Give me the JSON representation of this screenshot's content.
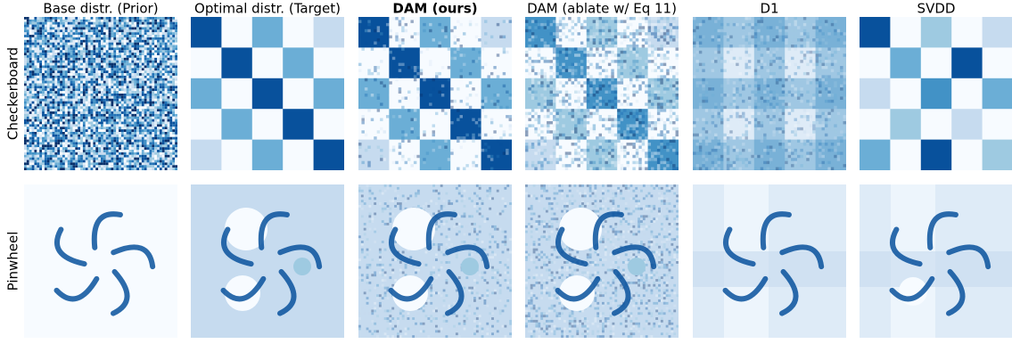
{
  "columns": [
    "Base distr. (Prior)",
    "Optimal distr. (Target)",
    "DAM (ours)",
    "DAM (ablate w/ Eq 11)",
    "D1",
    "SVDD"
  ],
  "rows": [
    "Checkerboard",
    "Pinwheel"
  ]
}
